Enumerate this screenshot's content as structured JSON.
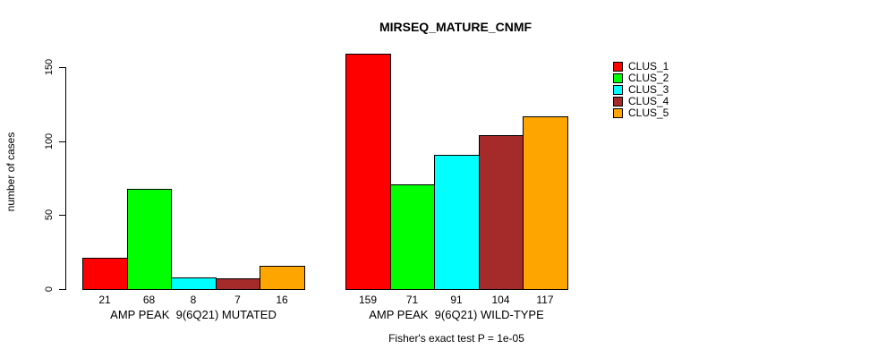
{
  "chart_data": {
    "type": "bar",
    "title": "MIRSEQ_MATURE_CNMF",
    "ylabel": "number of cases",
    "ylim": [
      0,
      150
    ],
    "yticks": [
      0,
      50,
      100,
      150
    ],
    "grid": false,
    "legend_position": "right",
    "bar_border_color": "#000000",
    "categories": [
      "AMP PEAK  9(6Q21) MUTATED",
      "AMP PEAK  9(6Q21) WILD-TYPE"
    ],
    "series": [
      {
        "name": "CLUS_1",
        "color": "#FF0000",
        "values": [
          21,
          159
        ]
      },
      {
        "name": "CLUS_2",
        "color": "#00FF00",
        "values": [
          68,
          71
        ]
      },
      {
        "name": "CLUS_3",
        "color": "#00FFFF",
        "values": [
          8,
          91
        ]
      },
      {
        "name": "CLUS_4",
        "color": "#A52A2A",
        "values": [
          7,
          104
        ]
      },
      {
        "name": "CLUS_5",
        "color": "#FFA500",
        "values": [
          16,
          117
        ]
      }
    ],
    "footnote": "Fisher's exact test P = 1e-05"
  }
}
